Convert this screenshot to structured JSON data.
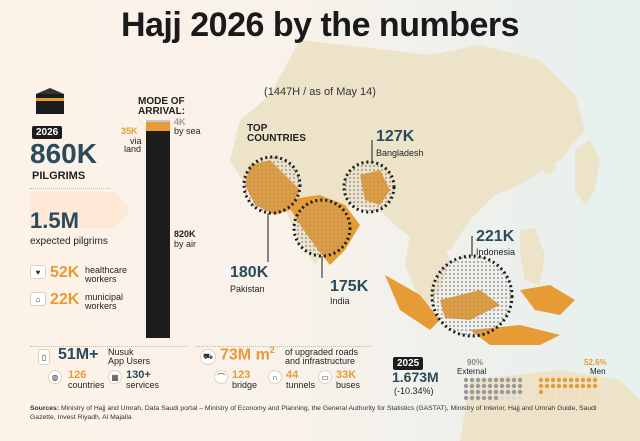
{
  "header": {
    "title": "Hajj 2026 by the numbers",
    "subtitle": "(1447H / as of May 14)"
  },
  "pilgrims": {
    "year": "2026",
    "value": "860K",
    "label": "PILGRIMS",
    "expected_value": "1.5M",
    "expected_label": "expected pilgrims"
  },
  "workers": {
    "healthcare_value": "52K",
    "healthcare_label_1": "healthcare",
    "healthcare_label_2": "workers",
    "municipal_value": "22K",
    "municipal_label_1": "municipal",
    "municipal_label_2": "workers"
  },
  "arrival": {
    "title_1": "MODE OF",
    "title_2": "ARRIVAL:",
    "sea_value": "4K",
    "sea_label": "by sea",
    "land_value": "35K",
    "land_label_1": "via",
    "land_label_2": "land",
    "air_value": "820K",
    "air_label": "by air",
    "shares": {
      "sea": 4,
      "land": 35,
      "air": 820
    }
  },
  "countries": {
    "heading_1": "TOP",
    "heading_2": "COUNTRIES",
    "items": [
      {
        "value": "127K",
        "name": "Bangladesh"
      },
      {
        "value": "180K",
        "name": "Pakistan"
      },
      {
        "value": "175K",
        "name": "India"
      },
      {
        "value": "221K",
        "name": "Indonesia"
      }
    ]
  },
  "nusuk": {
    "value": "51M+",
    "label_1": "Nusuk",
    "label_2": "App Users",
    "countries_value": "126",
    "countries_label": "countries",
    "services_value": "130+",
    "services_label": "services"
  },
  "roads": {
    "value": "73M m",
    "exponent": "2",
    "label_1": "of upgraded roads",
    "label_2": "and infrastructure",
    "bridge_value": "123",
    "bridge_label": "bridge",
    "tunnels_value": "44",
    "tunnels_label": "tunnels",
    "buses_value": "33K",
    "buses_label": "buses"
  },
  "year2025": {
    "year": "2025",
    "value": "1.673M",
    "change": "(-10.34%)"
  },
  "composition": {
    "external_pct": "90%",
    "external_label": "External",
    "men_pct": "52.6%",
    "men_label": "Men",
    "external_share": 0.9,
    "men_share": 0.526
  },
  "sources": {
    "label": "Sources:",
    "text": "Ministry of Hajj and Umrah, Data Saudi portal – Ministry of Economy and Planning, the General Authority for Statistics (GASTAT), Ministry of Interior, Hajj and Umrah Guide, Saudi Gazette, Invest Riyadh, Al Majalla"
  },
  "colors": {
    "accent": "#e79b35",
    "dark": "#2b4b5c",
    "bar": "#1c1c1c",
    "map_land": "#ece3c9"
  }
}
